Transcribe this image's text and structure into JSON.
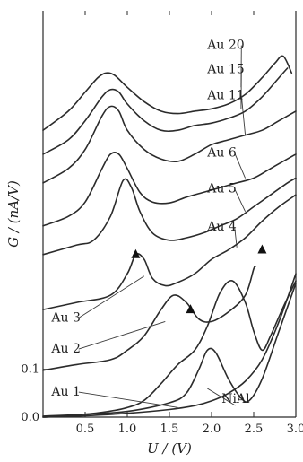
{
  "chart_data": {
    "type": "line",
    "xlabel": "U / (V)",
    "ylabel": "G / (nA/V)",
    "xlim": [
      0,
      3.0
    ],
    "ylim": [
      0,
      0.85
    ],
    "x_ticks": [
      "0.5",
      "1.0",
      "1.5",
      "2.0",
      "2.5",
      "3.0"
    ],
    "y_ticks": [
      "0.0",
      "0.1"
    ],
    "series": [
      {
        "name": "NiAl",
        "points": [
          [
            0.0,
            0.0
          ],
          [
            0.5,
            0.003
          ],
          [
            1.0,
            0.008
          ],
          [
            1.5,
            0.016
          ],
          [
            1.8,
            0.024
          ],
          [
            2.0,
            0.034
          ],
          [
            2.2,
            0.05
          ],
          [
            2.4,
            0.075
          ],
          [
            2.6,
            0.12
          ],
          [
            2.8,
            0.2
          ],
          [
            3.0,
            0.3
          ]
        ]
      },
      {
        "name": "Au 1",
        "points": [
          [
            0.0,
            0.002
          ],
          [
            0.5,
            0.006
          ],
          [
            1.0,
            0.012
          ],
          [
            1.5,
            0.03
          ],
          [
            1.7,
            0.05
          ],
          [
            1.85,
            0.1
          ],
          [
            1.95,
            0.14
          ],
          [
            2.05,
            0.135
          ],
          [
            2.2,
            0.08
          ],
          [
            2.35,
            0.04
          ],
          [
            2.45,
            0.035
          ],
          [
            2.6,
            0.08
          ],
          [
            2.8,
            0.18
          ],
          [
            3.0,
            0.28
          ]
        ]
      },
      {
        "name": "Au 2",
        "points": [
          [
            0.0,
            0.0
          ],
          [
            0.3,
            0.003
          ],
          [
            0.7,
            0.01
          ],
          [
            1.0,
            0.02
          ],
          [
            1.2,
            0.035
          ],
          [
            1.4,
            0.07
          ],
          [
            1.6,
            0.11
          ],
          [
            1.8,
            0.14
          ],
          [
            1.95,
            0.19
          ],
          [
            2.1,
            0.26
          ],
          [
            2.25,
            0.285
          ],
          [
            2.4,
            0.24
          ],
          [
            2.5,
            0.18
          ],
          [
            2.6,
            0.14
          ],
          [
            2.7,
            0.17
          ],
          [
            2.85,
            0.23
          ],
          [
            3.0,
            0.285
          ]
        ]
      },
      {
        "name": "Au 3",
        "points": [
          [
            0.0,
            0.098
          ],
          [
            0.4,
            0.11
          ],
          [
            0.8,
            0.12
          ],
          [
            1.0,
            0.14
          ],
          [
            1.2,
            0.17
          ],
          [
            1.4,
            0.225
          ],
          [
            1.55,
            0.255
          ],
          [
            1.7,
            0.24
          ],
          [
            1.85,
            0.205
          ],
          [
            2.0,
            0.2
          ],
          [
            2.2,
            0.22
          ],
          [
            2.4,
            0.255
          ],
          [
            2.5,
            0.31
          ],
          [
            2.52,
            0.315
          ]
        ]
      },
      {
        "name": "Au 4",
        "points": [
          [
            0.0,
            0.225
          ],
          [
            0.4,
            0.24
          ],
          [
            0.8,
            0.255
          ],
          [
            1.0,
            0.3
          ],
          [
            1.1,
            0.34
          ],
          [
            1.2,
            0.33
          ],
          [
            1.3,
            0.29
          ],
          [
            1.45,
            0.275
          ],
          [
            1.6,
            0.282
          ],
          [
            1.8,
            0.3
          ],
          [
            2.0,
            0.33
          ],
          [
            2.2,
            0.35
          ],
          [
            2.4,
            0.375
          ],
          [
            2.6,
            0.41
          ],
          [
            2.8,
            0.44
          ],
          [
            3.0,
            0.465
          ]
        ]
      },
      {
        "name": "Au 5",
        "points": [
          [
            0.0,
            0.34
          ],
          [
            0.4,
            0.36
          ],
          [
            0.6,
            0.37
          ],
          [
            0.8,
            0.42
          ],
          [
            0.95,
            0.495
          ],
          [
            1.05,
            0.48
          ],
          [
            1.15,
            0.43
          ],
          [
            1.3,
            0.385
          ],
          [
            1.5,
            0.37
          ],
          [
            1.7,
            0.375
          ],
          [
            1.9,
            0.385
          ],
          [
            2.1,
            0.4
          ],
          [
            2.3,
            0.415
          ],
          [
            2.5,
            0.44
          ],
          [
            2.7,
            0.465
          ],
          [
            2.9,
            0.49
          ],
          [
            3.0,
            0.5
          ]
        ]
      },
      {
        "name": "Au 6",
        "points": [
          [
            0.0,
            0.4
          ],
          [
            0.3,
            0.42
          ],
          [
            0.5,
            0.45
          ],
          [
            0.7,
            0.52
          ],
          [
            0.8,
            0.55
          ],
          [
            0.9,
            0.55
          ],
          [
            1.0,
            0.52
          ],
          [
            1.15,
            0.47
          ],
          [
            1.3,
            0.45
          ],
          [
            1.5,
            0.448
          ],
          [
            1.7,
            0.46
          ],
          [
            1.9,
            0.47
          ],
          [
            2.1,
            0.48
          ],
          [
            2.3,
            0.49
          ],
          [
            2.5,
            0.5
          ],
          [
            2.7,
            0.52
          ],
          [
            2.9,
            0.54
          ],
          [
            3.0,
            0.55
          ]
        ]
      },
      {
        "name": "Au 11",
        "points": [
          [
            0.0,
            0.49
          ],
          [
            0.3,
            0.52
          ],
          [
            0.5,
            0.56
          ],
          [
            0.7,
            0.63
          ],
          [
            0.8,
            0.65
          ],
          [
            0.9,
            0.64
          ],
          [
            1.0,
            0.6
          ],
          [
            1.2,
            0.56
          ],
          [
            1.4,
            0.54
          ],
          [
            1.6,
            0.535
          ],
          [
            1.8,
            0.55
          ],
          [
            2.0,
            0.57
          ],
          [
            2.2,
            0.58
          ],
          [
            2.4,
            0.59
          ],
          [
            2.6,
            0.6
          ],
          [
            2.8,
            0.62
          ],
          [
            3.0,
            0.64
          ]
        ]
      },
      {
        "name": "Au 15",
        "points": [
          [
            0.0,
            0.55
          ],
          [
            0.3,
            0.58
          ],
          [
            0.5,
            0.62
          ],
          [
            0.7,
            0.67
          ],
          [
            0.8,
            0.685
          ],
          [
            0.9,
            0.68
          ],
          [
            1.0,
            0.655
          ],
          [
            1.2,
            0.62
          ],
          [
            1.4,
            0.6
          ],
          [
            1.6,
            0.6
          ],
          [
            1.8,
            0.61
          ],
          [
            2.0,
            0.615
          ],
          [
            2.2,
            0.625
          ],
          [
            2.4,
            0.64
          ],
          [
            2.6,
            0.67
          ],
          [
            2.8,
            0.71
          ],
          [
            2.9,
            0.73
          ]
        ]
      },
      {
        "name": "Au 20",
        "points": [
          [
            0.0,
            0.6
          ],
          [
            0.3,
            0.64
          ],
          [
            0.5,
            0.68
          ],
          [
            0.65,
            0.71
          ],
          [
            0.75,
            0.72
          ],
          [
            0.85,
            0.715
          ],
          [
            1.0,
            0.69
          ],
          [
            1.2,
            0.66
          ],
          [
            1.4,
            0.64
          ],
          [
            1.6,
            0.635
          ],
          [
            1.8,
            0.64
          ],
          [
            2.0,
            0.645
          ],
          [
            2.2,
            0.655
          ],
          [
            2.4,
            0.675
          ],
          [
            2.6,
            0.71
          ],
          [
            2.75,
            0.74
          ],
          [
            2.85,
            0.755
          ],
          [
            2.95,
            0.72
          ]
        ]
      }
    ],
    "labels": [
      {
        "text": "Au 20",
        "series": "Au 20",
        "at": [
          1.95,
          0.77
        ],
        "anchor": [
          2.35,
          0.69
        ]
      },
      {
        "text": "Au 15",
        "series": "Au 15",
        "at": [
          1.95,
          0.72
        ],
        "anchor": [
          2.35,
          0.645
        ]
      },
      {
        "text": "Au 11",
        "series": "Au 11",
        "at": [
          1.95,
          0.665
        ],
        "anchor": [
          2.4,
          0.59
        ]
      },
      {
        "text": "Au 6",
        "series": "Au 6",
        "at": [
          1.95,
          0.545
        ],
        "anchor": [
          2.4,
          0.5
        ]
      },
      {
        "text": "Au 5",
        "series": "Au 5",
        "at": [
          1.95,
          0.47
        ],
        "anchor": [
          2.4,
          0.43
        ]
      },
      {
        "text": "Au 4",
        "series": "Au 4",
        "at": [
          1.95,
          0.39
        ],
        "anchor": [
          2.3,
          0.355
        ]
      },
      {
        "text": "Au 3",
        "series": "Au 3",
        "at": [
          0.1,
          0.2
        ],
        "anchor": [
          1.2,
          0.295
        ]
      },
      {
        "text": "Au 2",
        "series": "Au 2",
        "at": [
          0.1,
          0.135
        ],
        "anchor": [
          1.45,
          0.2
        ]
      },
      {
        "text": "Au 1",
        "series": "Au 1",
        "at": [
          0.1,
          0.045
        ],
        "anchor": [
          1.6,
          0.02
        ]
      },
      {
        "text": "NiAl",
        "series": "NiAl",
        "at": [
          2.12,
          0.03
        ],
        "anchor": [
          1.95,
          0.06
        ]
      }
    ],
    "markers": [
      {
        "x": 1.1,
        "y": 0.34
      },
      {
        "x": 1.75,
        "y": 0.225
      },
      {
        "x": 2.6,
        "y": 0.35
      }
    ],
    "grid": false,
    "legend": "none (curves labeled inline)"
  }
}
